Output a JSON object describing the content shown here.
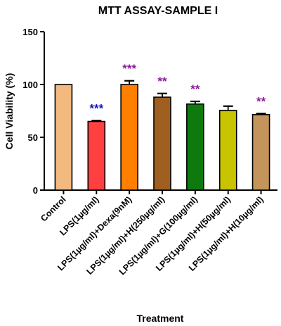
{
  "chart_data": {
    "type": "bar",
    "title": "MTT ASSAY-SAMPLE I",
    "xlabel": "Treatment",
    "ylabel": "Cell Viability (%)",
    "ylim": [
      0,
      150
    ],
    "yticks": [
      0,
      50,
      100,
      150
    ],
    "grid": false,
    "bars": [
      {
        "label": "Control",
        "value": 100,
        "error": 0,
        "color": "#F3BA80",
        "sig": "",
        "sig_color": ""
      },
      {
        "label": "LPS(1µg/ml)",
        "value": 65,
        "error": 0.8,
        "color": "#FF4040",
        "sig": "***",
        "sig_color": "#1414B4"
      },
      {
        "label": "LPS(1µg/ml)+Dexa(9nM)",
        "value": 100,
        "error": 3.5,
        "color": "#FF8000",
        "sig": "***",
        "sig_color": "#8B1A9B"
      },
      {
        "label": "LPS(1µg/ml)+H(250µg/ml)",
        "value": 88,
        "error": 3.5,
        "color": "#9E5F20",
        "sig": "**",
        "sig_color": "#8B1A9B"
      },
      {
        "label": "LPS(1µg/ml)+G(100µg/ml)",
        "value": 81.5,
        "error": 2.5,
        "color": "#0E7A0E",
        "sig": "**",
        "sig_color": "#8B1A9B"
      },
      {
        "label": "LPS(1µg/ml)+H(50µg/ml)",
        "value": 75.5,
        "error": 4,
        "color": "#C9C400",
        "sig": "",
        "sig_color": ""
      },
      {
        "label": "LPS(1µg/ml)+H(10µg/ml)",
        "value": 71.5,
        "error": 1,
        "color": "#C4955B",
        "sig": "**",
        "sig_color": "#8B1A9B"
      }
    ]
  }
}
